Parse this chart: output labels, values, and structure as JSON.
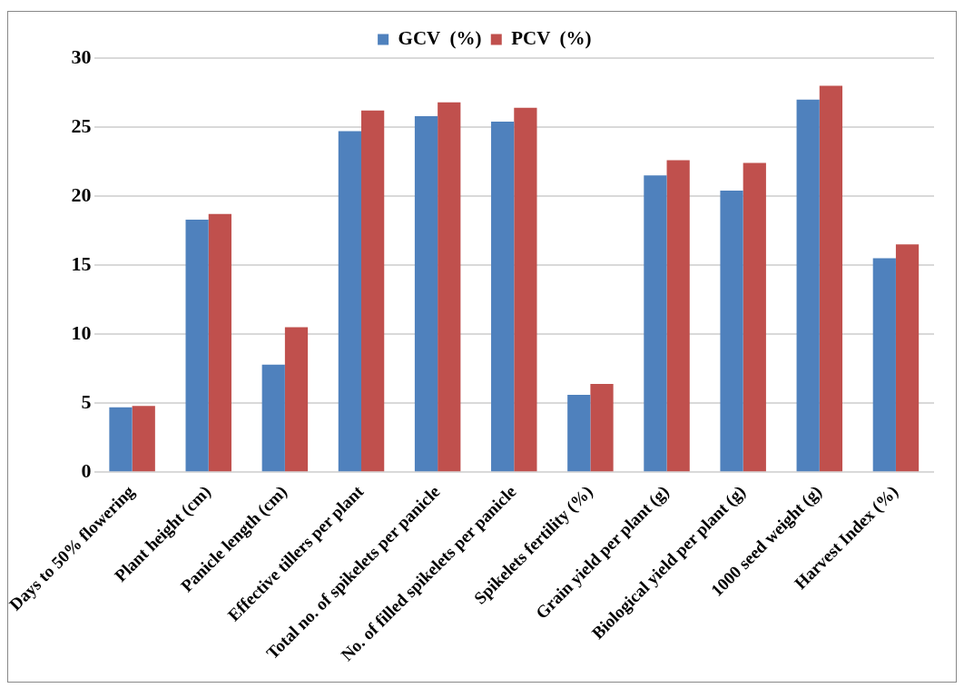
{
  "chart_data": {
    "type": "bar",
    "categories": [
      "Days to 50% flowering",
      "Plant height (cm)",
      "Panicle length (cm)",
      "Effective tillers per plant",
      "Total no. of spikelets per panicle",
      "No. of filled spikelets per panicle",
      "Spikelets fertility (%)",
      "Grain yield per plant (g)",
      "Biological yield per plant (g)",
      "1000 seed weight (g)",
      "Harvest Index (%)"
    ],
    "series": [
      {
        "name": "GCV  (%)",
        "color": "#4f81bd",
        "values": [
          4.7,
          18.3,
          7.8,
          24.7,
          25.8,
          25.4,
          5.6,
          21.5,
          20.4,
          27.0,
          15.5
        ]
      },
      {
        "name": "PCV  (%)",
        "color": "#c0504d",
        "values": [
          4.8,
          18.7,
          10.5,
          26.2,
          26.8,
          26.4,
          6.4,
          22.6,
          22.4,
          28.0,
          16.5
        ]
      }
    ],
    "ylim": [
      0,
      30
    ],
    "yticks": [
      0,
      5,
      10,
      15,
      20,
      25,
      30
    ],
    "grid": "y",
    "legend": "top"
  }
}
